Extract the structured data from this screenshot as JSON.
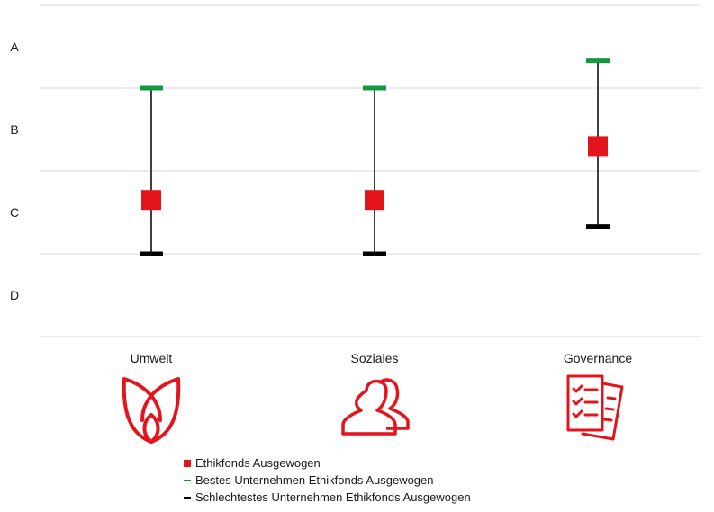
{
  "chart_data": {
    "type": "scatter",
    "categories": [
      "Umwelt",
      "Soziales",
      "Governance"
    ],
    "y_ticks": [
      "A",
      "B",
      "C",
      "D"
    ],
    "ylim": [
      0,
      4
    ],
    "series": [
      {
        "name": "Ethikfonds Ausgewogen",
        "marker": "square",
        "color": "#e3141b",
        "values": [
          1.65,
          1.65,
          2.3
        ]
      },
      {
        "name": "Bestes Unternehmen Ethikfonds Ausgewogen",
        "marker": "dash",
        "color": "#0f9a3e",
        "values": [
          3.0,
          3.0,
          3.33
        ]
      },
      {
        "name": "Schlechtestes Unternehmen Ethikfonds Ausgewogen",
        "marker": "dash",
        "color": "#000000",
        "values": [
          1.0,
          1.0,
          1.33
        ]
      }
    ],
    "grid": true,
    "legend_position": "bottom"
  },
  "icons": [
    "leaf-icon",
    "people-icon",
    "checklist-icon"
  ],
  "accent_color": "#e3141b"
}
